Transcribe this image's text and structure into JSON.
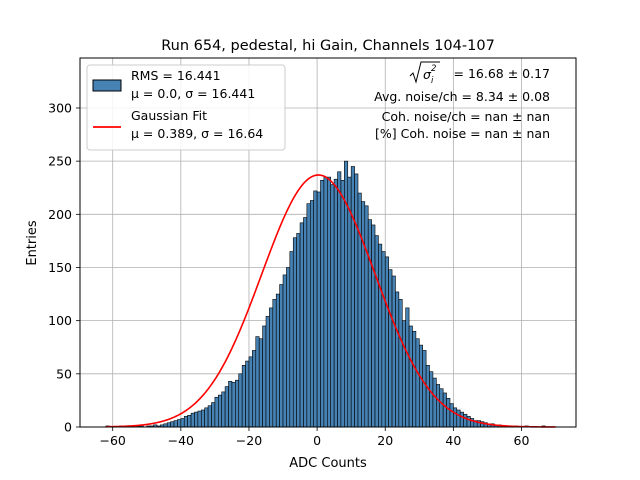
{
  "chart_data": {
    "type": "bar",
    "title": "Run 654, pedestal, hi Gain, Channels 104-107",
    "xlabel": "ADC Counts",
    "ylabel": "Entries",
    "xlim": [
      -69.6,
      76.0
    ],
    "ylim": [
      0,
      347
    ],
    "xticks": [
      -60,
      -40,
      -20,
      0,
      20,
      40,
      60
    ],
    "yticks": [
      0,
      50,
      100,
      150,
      200,
      250,
      300
    ],
    "grid": true,
    "legend_position": "top-left",
    "bin_width": 1,
    "histogram": {
      "name_line1": "RMS = 16.441",
      "name_line2": "μ = 0.0, σ = 16.441",
      "color": "#4682b4",
      "x_start": -62,
      "counts": [
        1,
        0,
        0,
        0,
        1,
        0,
        0,
        1,
        0,
        1,
        1,
        0,
        1,
        1,
        2,
        1,
        2,
        3,
        4,
        5,
        6,
        7,
        8,
        10,
        11,
        13,
        14,
        15,
        16,
        18,
        20,
        23,
        28,
        30,
        33,
        38,
        43,
        42,
        44,
        50,
        58,
        62,
        66,
        72,
        85,
        83,
        95,
        104,
        112,
        120,
        125,
        134,
        143,
        150,
        165,
        178,
        182,
        192,
        197,
        210,
        213,
        222,
        221,
        232,
        235,
        235,
        228,
        233,
        240,
        232,
        250,
        235,
        245,
        238,
        220,
        212,
        208,
        195,
        190,
        180,
        172,
        165,
        160,
        148,
        142,
        127,
        120,
        100,
        112,
        95,
        90,
        83,
        77,
        72,
        58,
        52,
        46,
        40,
        36,
        32,
        27,
        22,
        18,
        16,
        14,
        12,
        10,
        8,
        6,
        6,
        5,
        4,
        3,
        3,
        2,
        2,
        1,
        1,
        1,
        0,
        1,
        0,
        0,
        1,
        0,
        0,
        0,
        0,
        1
      ]
    },
    "fit": {
      "name_line1": "Gaussian Fit",
      "name_line2": "μ = 0.389, σ = 16.64",
      "color": "#ff0000",
      "mu": 0.389,
      "sigma": 16.64,
      "peak": 237,
      "x_range": [
        -62,
        70
      ]
    },
    "annotations": {
      "sqrt_value": "= 16.68 ± 0.17",
      "avg_noise": "Avg. noise/ch = 8.34 ± 0.08",
      "coh_noise": "Coh. noise/ch = nan ± nan",
      "coh_noise_pct": "[%] Coh. noise = nan ± nan"
    }
  }
}
